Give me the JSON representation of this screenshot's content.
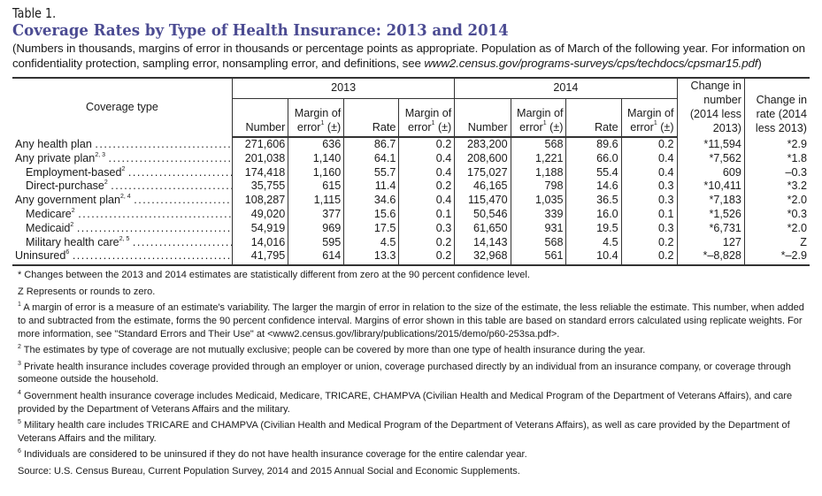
{
  "table_number": "Table 1.",
  "title": "Coverage Rates by Type of Health Insurance: 2013 and 2014",
  "subtitle_text": "(Numbers in thousands, margins of error in thousands or percentage points as appropriate. Population as of March of the following year. For information on confidentiality protection, sampling error, nonsampling error, and definitions, see ",
  "subtitle_link": "www2.census.gov/programs-surveys/cps/techdocs/cpsmar15.pdf",
  "subtitle_end": ")",
  "title_color": "#4b4b92",
  "header": {
    "coverage_type": "Coverage type",
    "year_2013": "2013",
    "year_2014": "2014",
    "number": "Number",
    "margin_of": "Margin of",
    "error": "error",
    "error_sup": "1",
    "plus_minus": "(±)",
    "rate": "Rate",
    "change_number": "Change in number (2014 less 2013)",
    "change_rate": "Change in rate (2014 less 2013)"
  },
  "rows": [
    {
      "label": "Any health plan",
      "sup": "",
      "indent": false,
      "values": [
        "271,606",
        "636",
        "86.7",
        "0.2",
        "283,200",
        "568",
        "89.6",
        "0.2",
        "*11,594",
        "*2.9"
      ]
    },
    {
      "label": "Any private plan",
      "sup": "2, 3",
      "indent": false,
      "values": [
        "201,038",
        "1,140",
        "64.1",
        "0.4",
        "208,600",
        "1,221",
        "66.0",
        "0.4",
        "*7,562",
        "*1.8"
      ]
    },
    {
      "label": "Employment-based",
      "sup": "2",
      "indent": true,
      "values": [
        "174,418",
        "1,160",
        "55.7",
        "0.4",
        "175,027",
        "1,188",
        "55.4",
        "0.4",
        "609",
        "–0.3"
      ]
    },
    {
      "label": "Direct-purchase",
      "sup": "2",
      "indent": true,
      "values": [
        "35,755",
        "615",
        "11.4",
        "0.2",
        "46,165",
        "798",
        "14.6",
        "0.3",
        "*10,411",
        "*3.2"
      ]
    },
    {
      "label": "Any government plan",
      "sup": "2, 4",
      "indent": false,
      "values": [
        "108,287",
        "1,115",
        "34.6",
        "0.4",
        "115,470",
        "1,035",
        "36.5",
        "0.3",
        "*7,183",
        "*2.0"
      ]
    },
    {
      "label": "Medicare",
      "sup": "2",
      "indent": true,
      "values": [
        "49,020",
        "377",
        "15.6",
        "0.1",
        "50,546",
        "339",
        "16.0",
        "0.1",
        "*1,526",
        "*0.3"
      ]
    },
    {
      "label": "Medicaid",
      "sup": "2",
      "indent": true,
      "values": [
        "54,919",
        "969",
        "17.5",
        "0.3",
        "61,650",
        "931",
        "19.5",
        "0.3",
        "*6,731",
        "*2.0"
      ]
    },
    {
      "label": "Military health care",
      "sup": "2, 5",
      "indent": true,
      "values": [
        "14,016",
        "595",
        "4.5",
        "0.2",
        "14,143",
        "568",
        "4.5",
        "0.2",
        "127",
        "Z"
      ]
    },
    {
      "label": "Uninsured",
      "sup": "6",
      "indent": false,
      "values": [
        "41,795",
        "614",
        "13.3",
        "0.2",
        "32,968",
        "561",
        "10.4",
        "0.2",
        "*–8,828",
        "*–2.9"
      ]
    }
  ],
  "footnotes": [
    {
      "mark": "*",
      "text": " Changes between the 2013 and 2014 estimates are statistically different from zero at the 90 percent confidence level."
    },
    {
      "mark": "",
      "text": "Z Represents or rounds to zero."
    },
    {
      "mark": "1",
      "text": " A margin of error is a measure of an estimate's variability. The larger the margin of error in relation to the size of the estimate, the less reliable the estimate. This number, when added to and subtracted from the estimate, forms the 90 percent confidence interval. Margins of error shown in this table are based on standard errors calculated using replicate weights. For more information, see \"Standard Errors and Their Use\" at <www2.census.gov/library/publications/2015/demo/p60-253sa.pdf>."
    },
    {
      "mark": "2",
      "text": " The estimates by type of coverage are not mutually exclusive; people can be covered by more than one type of health insurance during the year."
    },
    {
      "mark": "3",
      "text": " Private health insurance includes coverage provided through an employer or union, coverage purchased directly by an individual from an insurance company, or coverage through someone outside the household."
    },
    {
      "mark": "4",
      "text": " Government health insurance coverage includes Medicaid, Medicare, TRICARE, CHAMPVA (Civilian Health and Medical Program of the Department of Veterans Affairs), and care provided by the Department of Veterans Affairs and the military."
    },
    {
      "mark": "5",
      "text": " Military health care includes TRICARE and CHAMPVA (Civilian Health and Medical Program of the Department of Veterans Affairs), as well as care provided by the Department of Veterans Affairs and the military."
    },
    {
      "mark": "6",
      "text": " Individuals are considered to be uninsured if they do not have health insurance coverage for the entire calendar year."
    }
  ],
  "source": "Source: U.S. Census Bureau, Current Population Survey, 2014 and 2015 Annual Social and Economic Supplements."
}
